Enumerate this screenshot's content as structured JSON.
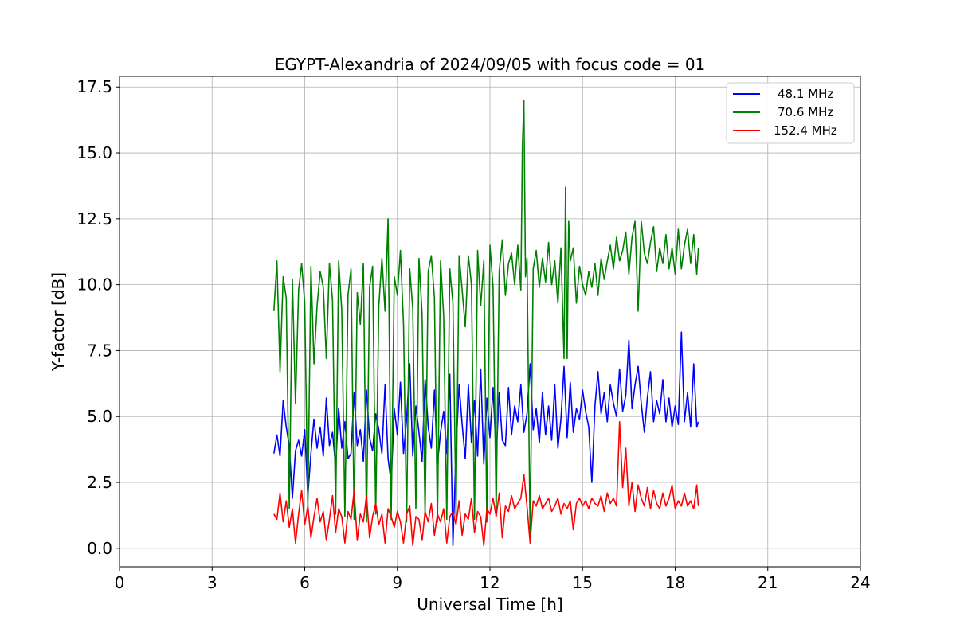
{
  "chart_data": {
    "type": "line",
    "title": "EGYPT-Alexandria of 2024/09/05 with focus code = 01",
    "xlabel": "Universal Time [h]",
    "ylabel": "Y-factor [dB]",
    "xlim": [
      0,
      24
    ],
    "ylim": [
      -0.7,
      17.9
    ],
    "xticks": [
      0,
      3,
      6,
      9,
      12,
      15,
      18,
      21,
      24
    ],
    "xtick_labels": [
      "0",
      "3",
      "6",
      "9",
      "12",
      "15",
      "18",
      "21",
      "24"
    ],
    "yticks": [
      0.0,
      2.5,
      5.0,
      7.5,
      10.0,
      12.5,
      15.0,
      17.5
    ],
    "ytick_labels": [
      "0.0",
      "2.5",
      "5.0",
      "7.5",
      "10.0",
      "12.5",
      "15.0",
      "17.5"
    ],
    "grid": true,
    "legend_position": "top-right",
    "series": [
      {
        "name": "48.1 MHz",
        "color": "#0000ff",
        "x": [
          5.0,
          5.1,
          5.2,
          5.3,
          5.4,
          5.5,
          5.6,
          5.7,
          5.8,
          5.9,
          6.0,
          6.1,
          6.2,
          6.3,
          6.4,
          6.5,
          6.6,
          6.7,
          6.8,
          6.9,
          7.0,
          7.1,
          7.2,
          7.3,
          7.4,
          7.5,
          7.6,
          7.7,
          7.8,
          7.9,
          8.0,
          8.1,
          8.2,
          8.3,
          8.4,
          8.5,
          8.6,
          8.7,
          8.8,
          8.9,
          9.0,
          9.1,
          9.2,
          9.3,
          9.4,
          9.5,
          9.6,
          9.7,
          9.8,
          9.9,
          10.0,
          10.1,
          10.2,
          10.3,
          10.4,
          10.5,
          10.6,
          10.7,
          10.8,
          10.9,
          11.0,
          11.1,
          11.2,
          11.3,
          11.4,
          11.5,
          11.6,
          11.7,
          11.8,
          11.9,
          12.0,
          12.1,
          12.2,
          12.3,
          12.4,
          12.5,
          12.6,
          12.7,
          12.8,
          12.9,
          13.0,
          13.1,
          13.2,
          13.3,
          13.4,
          13.5,
          13.6,
          13.7,
          13.8,
          13.9,
          14.0,
          14.1,
          14.2,
          14.3,
          14.4,
          14.5,
          14.6,
          14.7,
          14.8,
          14.9,
          15.0,
          15.1,
          15.2,
          15.3,
          15.4,
          15.5,
          15.6,
          15.7,
          15.8,
          15.9,
          16.0,
          16.1,
          16.2,
          16.3,
          16.4,
          16.5,
          16.6,
          16.7,
          16.8,
          16.9,
          17.0,
          17.1,
          17.2,
          17.3,
          17.4,
          17.5,
          17.6,
          17.7,
          17.8,
          17.9,
          18.0,
          18.1,
          18.2,
          18.3,
          18.4,
          18.5,
          18.6,
          18.7,
          18.75
        ],
        "y": [
          3.6,
          4.3,
          3.5,
          5.6,
          4.6,
          3.9,
          1.9,
          3.7,
          4.1,
          3.5,
          4.5,
          2.0,
          3.6,
          4.9,
          3.8,
          4.6,
          3.5,
          5.7,
          3.9,
          4.4,
          3.1,
          5.3,
          3.8,
          4.8,
          3.4,
          3.6,
          5.9,
          3.9,
          4.5,
          3.3,
          6.0,
          4.2,
          3.7,
          5.1,
          4.5,
          3.6,
          6.2,
          3.4,
          2.5,
          5.3,
          4.3,
          6.3,
          3.6,
          4.9,
          7.0,
          3.5,
          5.4,
          4.4,
          3.3,
          6.4,
          4.6,
          3.8,
          6.0,
          3.2,
          4.4,
          5.2,
          3.6,
          6.6,
          0.1,
          3.7,
          6.2,
          4.7,
          3.4,
          6.2,
          4.0,
          5.6,
          3.5,
          6.8,
          3.2,
          5.7,
          4.2,
          6.1,
          3.5,
          5.9,
          4.1,
          3.9,
          6.1,
          4.3,
          5.4,
          4.8,
          6.2,
          4.4,
          5.1,
          7.0,
          4.5,
          5.3,
          4.0,
          5.9,
          4.3,
          5.4,
          4.1,
          6.2,
          3.8,
          4.9,
          6.9,
          4.2,
          6.3,
          4.4,
          5.3,
          4.9,
          6.0,
          5.2,
          4.6,
          2.5,
          5.4,
          6.7,
          5.1,
          5.9,
          4.8,
          6.2,
          5.5,
          5.0,
          6.8,
          5.2,
          5.8,
          7.9,
          5.3,
          6.2,
          6.9,
          5.5,
          4.4,
          5.7,
          6.7,
          4.8,
          5.6,
          5.1,
          6.4,
          4.8,
          5.7,
          4.6,
          5.4,
          4.7,
          8.2,
          4.8,
          5.9,
          4.6,
          7.0,
          4.6,
          4.8
        ],
        "name_label": "48.1 MHz"
      },
      {
        "name": "70.6 MHz",
        "color": "#008000",
        "x": [
          5.0,
          5.1,
          5.2,
          5.3,
          5.4,
          5.5,
          5.6,
          5.7,
          5.8,
          5.9,
          6.0,
          6.1,
          6.2,
          6.3,
          6.4,
          6.5,
          6.6,
          6.7,
          6.8,
          6.9,
          7.0,
          7.1,
          7.2,
          7.3,
          7.4,
          7.5,
          7.6,
          7.7,
          7.8,
          7.9,
          8.0,
          8.1,
          8.2,
          8.3,
          8.4,
          8.5,
          8.6,
          8.7,
          8.8,
          8.9,
          9.0,
          9.1,
          9.2,
          9.3,
          9.4,
          9.5,
          9.6,
          9.7,
          9.8,
          9.9,
          10.0,
          10.1,
          10.2,
          10.3,
          10.4,
          10.5,
          10.6,
          10.7,
          10.8,
          10.9,
          11.0,
          11.1,
          11.2,
          11.3,
          11.4,
          11.5,
          11.6,
          11.7,
          11.8,
          11.9,
          12.0,
          12.1,
          12.2,
          12.3,
          12.4,
          12.5,
          12.6,
          12.7,
          12.8,
          12.9,
          13.0,
          13.05,
          13.1,
          13.15,
          13.2,
          13.3,
          13.4,
          13.5,
          13.6,
          13.7,
          13.8,
          13.9,
          14.0,
          14.1,
          14.2,
          14.3,
          14.4,
          14.45,
          14.5,
          14.55,
          14.6,
          14.7,
          14.8,
          14.9,
          15.0,
          15.1,
          15.2,
          15.3,
          15.4,
          15.5,
          15.6,
          15.7,
          15.8,
          15.9,
          16.0,
          16.1,
          16.2,
          16.3,
          16.4,
          16.5,
          16.6,
          16.7,
          16.8,
          16.9,
          17.0,
          17.1,
          17.2,
          17.3,
          17.4,
          17.5,
          17.6,
          17.7,
          17.8,
          17.9,
          18.0,
          18.1,
          18.2,
          18.3,
          18.4,
          18.5,
          18.6,
          18.7,
          18.75
        ],
        "y": [
          9.0,
          10.9,
          6.7,
          10.3,
          9.5,
          1.5,
          10.2,
          5.5,
          9.8,
          10.8,
          9.3,
          1.6,
          10.7,
          7.0,
          9.2,
          10.5,
          9.9,
          7.2,
          10.8,
          9.4,
          1.3,
          10.9,
          9.0,
          1.2,
          9.6,
          10.6,
          1.1,
          9.7,
          8.5,
          10.8,
          1.0,
          9.9,
          10.7,
          1.3,
          9.2,
          11.0,
          9.0,
          12.5,
          1.1,
          10.3,
          9.6,
          11.3,
          8.5,
          1.0,
          10.6,
          9.1,
          1.5,
          11.0,
          8.9,
          1.2,
          10.5,
          11.1,
          9.5,
          1.0,
          10.9,
          8.8,
          1.1,
          10.6,
          9.3,
          1.2,
          11.1,
          9.8,
          8.4,
          11.1,
          10.0,
          1.1,
          11.3,
          9.2,
          10.9,
          1.0,
          11.5,
          9.9,
          1.4,
          10.5,
          11.7,
          9.6,
          10.8,
          11.2,
          10.0,
          11.5,
          9.8,
          15.2,
          17.0,
          10.3,
          11.0,
          0.5,
          10.6,
          11.3,
          9.9,
          11.0,
          10.1,
          11.6,
          10.0,
          10.9,
          9.3,
          11.4,
          7.2,
          13.7,
          7.2,
          12.4,
          10.9,
          11.4,
          9.3,
          10.7,
          10.0,
          9.6,
          10.5,
          9.9,
          10.8,
          9.6,
          11.0,
          10.2,
          10.9,
          11.5,
          10.6,
          11.8,
          10.9,
          11.3,
          12.0,
          10.4,
          11.8,
          12.4,
          9.0,
          12.4,
          11.2,
          10.8,
          11.6,
          12.2,
          10.5,
          11.4,
          10.8,
          11.9,
          10.6,
          11.4,
          10.4,
          12.1,
          10.6,
          11.5,
          12.1,
          10.8,
          11.9,
          10.4,
          11.4
        ]
      },
      {
        "name": "152.4 MHz",
        "color": "#ff0000",
        "x": [
          5.0,
          5.1,
          5.2,
          5.3,
          5.4,
          5.5,
          5.6,
          5.7,
          5.8,
          5.9,
          6.0,
          6.1,
          6.2,
          6.3,
          6.4,
          6.5,
          6.6,
          6.7,
          6.8,
          6.9,
          7.0,
          7.1,
          7.2,
          7.3,
          7.4,
          7.5,
          7.6,
          7.7,
          7.8,
          7.9,
          8.0,
          8.1,
          8.2,
          8.3,
          8.4,
          8.5,
          8.6,
          8.7,
          8.8,
          8.9,
          9.0,
          9.1,
          9.2,
          9.3,
          9.4,
          9.5,
          9.6,
          9.7,
          9.8,
          9.9,
          10.0,
          10.1,
          10.2,
          10.3,
          10.4,
          10.5,
          10.6,
          10.7,
          10.8,
          10.9,
          11.0,
          11.1,
          11.2,
          11.3,
          11.4,
          11.5,
          11.6,
          11.7,
          11.8,
          11.9,
          12.0,
          12.1,
          12.2,
          12.3,
          12.4,
          12.5,
          12.6,
          12.7,
          12.8,
          12.9,
          13.0,
          13.1,
          13.2,
          13.3,
          13.4,
          13.5,
          13.6,
          13.7,
          13.8,
          13.9,
          14.0,
          14.1,
          14.2,
          14.3,
          14.4,
          14.5,
          14.6,
          14.7,
          14.8,
          14.9,
          15.0,
          15.1,
          15.2,
          15.3,
          15.4,
          15.5,
          15.6,
          15.7,
          15.8,
          15.9,
          16.0,
          16.1,
          16.2,
          16.3,
          16.4,
          16.5,
          16.6,
          16.7,
          16.8,
          16.9,
          17.0,
          17.1,
          17.2,
          17.3,
          17.4,
          17.5,
          17.6,
          17.7,
          17.8,
          17.9,
          18.0,
          18.1,
          18.2,
          18.3,
          18.4,
          18.5,
          18.6,
          18.7,
          18.75
        ],
        "y": [
          1.3,
          1.1,
          2.1,
          1.0,
          1.8,
          0.8,
          1.5,
          0.2,
          1.3,
          2.2,
          0.9,
          1.6,
          0.4,
          1.2,
          1.9,
          1.0,
          1.4,
          0.3,
          1.1,
          2.0,
          0.6,
          1.5,
          1.2,
          0.2,
          1.4,
          1.1,
          2.2,
          0.3,
          1.3,
          1.0,
          2.0,
          0.4,
          1.2,
          1.7,
          0.9,
          1.3,
          0.2,
          1.5,
          1.2,
          0.8,
          1.4,
          1.0,
          0.2,
          1.3,
          1.6,
          0.1,
          1.2,
          1.1,
          0.3,
          1.4,
          1.0,
          1.7,
          0.5,
          1.3,
          1.0,
          1.5,
          0.2,
          1.2,
          1.4,
          0.9,
          1.8,
          0.5,
          1.3,
          1.1,
          1.9,
          0.6,
          1.4,
          1.2,
          0.1,
          1.5,
          1.3,
          1.9,
          1.2,
          2.1,
          0.4,
          1.6,
          1.4,
          2.0,
          1.5,
          1.7,
          1.9,
          2.8,
          1.6,
          0.2,
          1.8,
          1.6,
          2.0,
          1.5,
          1.7,
          1.9,
          1.4,
          1.6,
          1.9,
          1.3,
          1.7,
          1.5,
          1.8,
          0.7,
          1.7,
          1.9,
          1.6,
          1.8,
          1.5,
          1.9,
          1.7,
          1.6,
          2.0,
          1.4,
          2.1,
          1.7,
          1.9,
          1.6,
          4.8,
          2.3,
          3.8,
          1.6,
          2.5,
          1.4,
          2.4,
          1.9,
          1.6,
          2.3,
          1.5,
          2.2,
          1.7,
          1.5,
          2.1,
          1.6,
          1.9,
          2.4,
          1.5,
          1.8,
          1.6,
          2.1,
          1.6,
          1.8,
          1.5,
          2.4,
          1.6
        ]
      }
    ]
  }
}
